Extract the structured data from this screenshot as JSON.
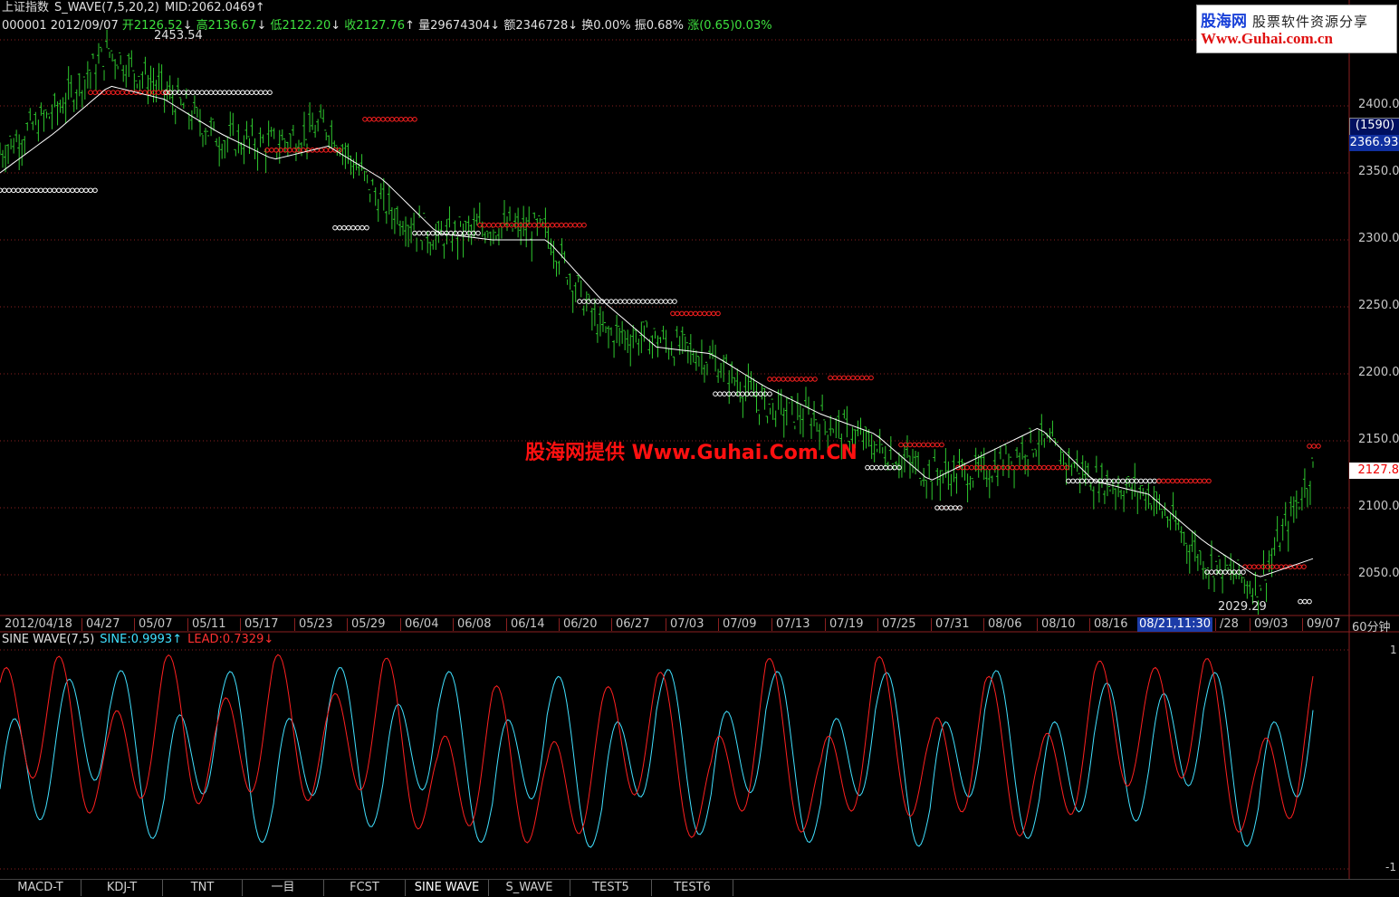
{
  "header": {
    "index_name": "上证指数",
    "indicator": "S_WAVE(7,5,20,2)",
    "mid_label": "MID:2062.0469",
    "mid_arrow": "↑",
    "code": "000001",
    "date": "2012/09/07",
    "open": "开2126.52",
    "open_arrow": "↓",
    "high": "高2136.67",
    "high_arrow": "↓",
    "low": "低2122.20",
    "low_arrow": "↓",
    "close": "收2127.76",
    "close_arrow": "↑",
    "volume": "量29674304",
    "volume_arrow": "↓",
    "amount": "额2346728",
    "amount_arrow": "↓",
    "turnover": "换0.00%",
    "amplitude": "振0.68%",
    "change": "涨(0.65)0.03%"
  },
  "logo": {
    "brand": "股海网",
    "slogan": "股票软件资源分享",
    "url": "Www.Guhai.com.cn"
  },
  "watermark": "股海网提供 Www.Guhai.Com.CN",
  "price_axis": {
    "ticks": [
      "2400.00",
      "2350.00",
      "2300.00",
      "2250.00",
      "2200.00",
      "2150.00",
      "2100.00",
      "2050.00"
    ],
    "volume_box": "(1590)",
    "price_box": "2366.93",
    "current_price": "2127.8"
  },
  "annotations": {
    "high_label": "2453.54",
    "low_label": "2029.29"
  },
  "date_axis": {
    "labels": [
      "2012/04/18",
      "04/27",
      "05/07",
      "05/11",
      "05/17",
      "05/23",
      "05/29",
      "06/04",
      "06/08",
      "06/14",
      "06/20",
      "06/27",
      "07/03",
      "07/09",
      "07/13",
      "07/19",
      "07/25",
      "07/31",
      "08/06",
      "08/10",
      "08/16",
      "/28",
      "09/03",
      "09/07"
    ],
    "highlight": "08/21,11:30",
    "period": "60分钟"
  },
  "indicator_panel": {
    "title": "SINE WAVE(7,5)",
    "sine_label": "SINE:0.9993",
    "sine_arrow": "↑",
    "lead_label": "LEAD:0.7329",
    "lead_arrow": "↓",
    "axis_top": "1",
    "axis_bottom": "-1"
  },
  "tabs": [
    "MACD-T",
    "KDJ-T",
    "TNT",
    "一目",
    "FCST",
    "SINE WAVE",
    "S_WAVE",
    "TEST5",
    "TEST6"
  ],
  "active_tab": "SINE WAVE",
  "colors": {
    "up": "#3ee13e",
    "down": "#3ee13e",
    "ma": "#ffffff",
    "resist": "#ff2020",
    "support": "#ffffff",
    "sine": "#40e0ff",
    "lead": "#ff2020",
    "grid": "#8b2020"
  },
  "chart_data": [
    {
      "type": "line",
      "title": "上证指数 S_WAVE(7,5,20,2)",
      "x": [
        "04/18",
        "04/27",
        "05/07",
        "05/11",
        "05/17",
        "05/23",
        "05/29",
        "06/04",
        "06/08",
        "06/14",
        "06/20",
        "06/27",
        "07/03",
        "07/09",
        "07/13",
        "07/19",
        "07/25",
        "07/31",
        "08/06",
        "08/10",
        "08/16",
        "08/21",
        "08/28",
        "09/03",
        "09/07"
      ],
      "series": [
        {
          "name": "收",
          "values": [
            2365,
            2395,
            2440,
            2410,
            2375,
            2370,
            2385,
            2325,
            2300,
            2310,
            2305,
            2230,
            2225,
            2210,
            2175,
            2165,
            2145,
            2125,
            2125,
            2150,
            2120,
            2110,
            2060,
            2040,
            2128
          ]
        },
        {
          "name": "MID",
          "values": [
            2350,
            2380,
            2415,
            2405,
            2380,
            2360,
            2370,
            2345,
            2305,
            2300,
            2300,
            2255,
            2220,
            2215,
            2190,
            2170,
            2155,
            2120,
            2140,
            2160,
            2120,
            2110,
            2075,
            2048,
            2062
          ]
        }
      ],
      "ylim": [
        2020,
        2460
      ],
      "grid": true
    },
    {
      "type": "line",
      "title": "SINE WAVE(7,5)",
      "series": [
        {
          "name": "SINE",
          "values": [
            -0.6,
            0.2,
            1.0,
            -0.8,
            1.0,
            -0.9,
            1.0,
            -0.5,
            1.0,
            -0.9,
            0.9,
            -1.0,
            1.0,
            -0.7,
            1.0,
            -0.9,
            1.0,
            -1.0,
            1.0,
            -0.8,
            0.5,
            -0.2,
            1.0,
            -1.0,
            1.0
          ]
        },
        {
          "name": "LEAD",
          "values": [
            0.6,
            1.0,
            -0.4,
            1.0,
            -0.1,
            1.0,
            0.0,
            1.0,
            -0.9,
            0.4,
            -1.0,
            0.2,
            0.7,
            -1.0,
            1.0,
            -1.0,
            1.0,
            -0.5,
            0.6,
            -0.9,
            0.8,
            0.6,
            1.0,
            -1.0,
            0.73
          ]
        }
      ],
      "ylim": [
        -1,
        1
      ]
    }
  ]
}
